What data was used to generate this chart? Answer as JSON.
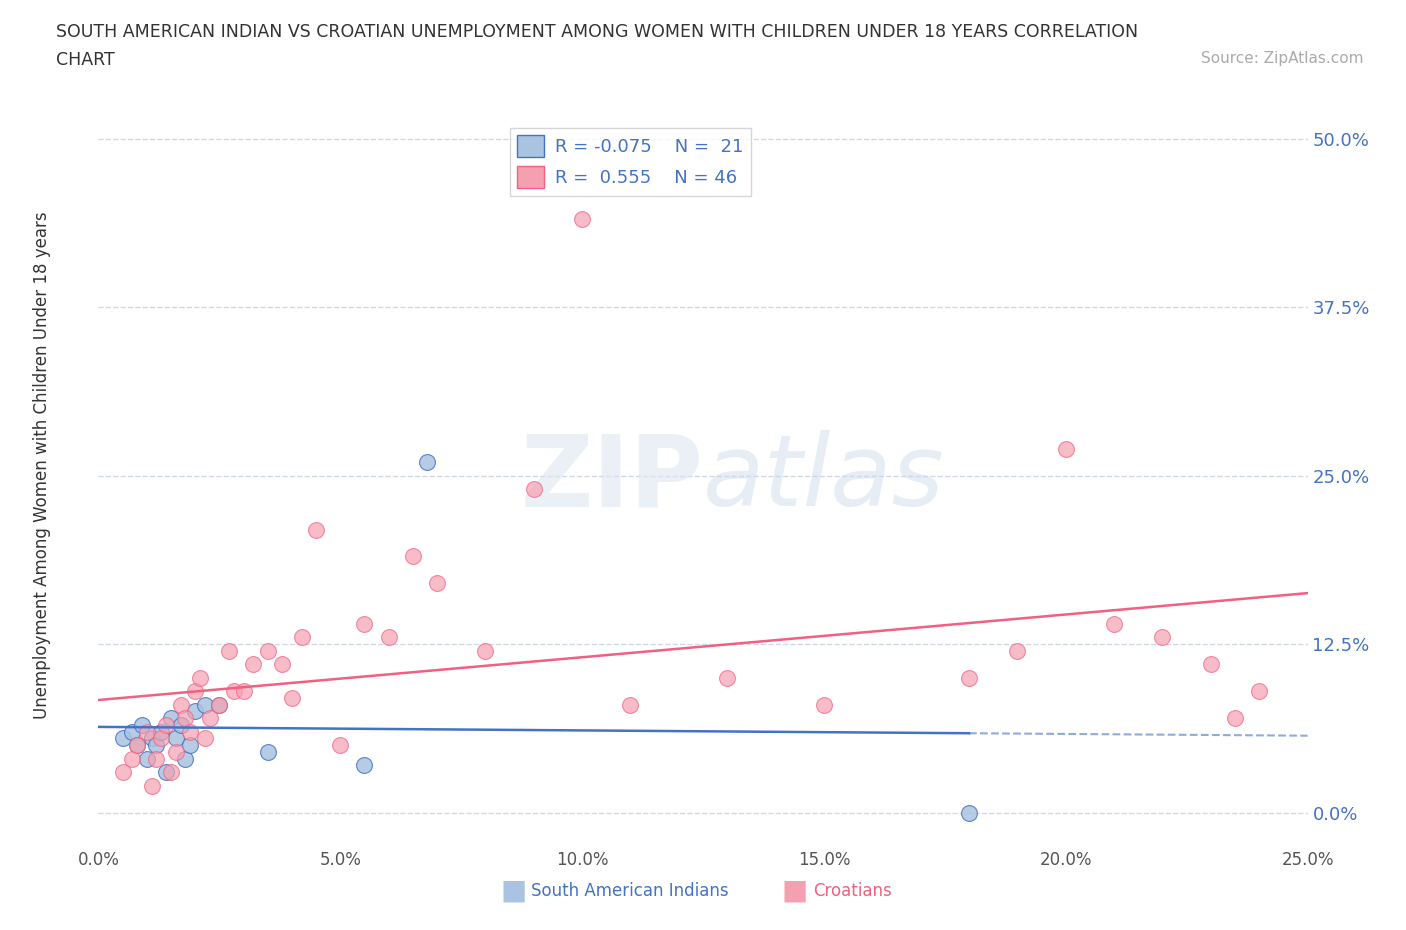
{
  "title_line1": "SOUTH AMERICAN INDIAN VS CROATIAN UNEMPLOYMENT AMONG WOMEN WITH CHILDREN UNDER 18 YEARS CORRELATION",
  "title_line2": "CHART",
  "source": "Source: ZipAtlas.com",
  "ylabel_label": "Unemployment Among Women with Children Under 18 years",
  "legend_blue_R": "R = -0.075",
  "legend_blue_N": "N =  21",
  "legend_pink_R": "R =  0.555",
  "legend_pink_N": "N = 46",
  "blue_color": "#a8c4e0",
  "pink_color": "#f4a0b0",
  "blue_line_color": "#4472c4",
  "pink_line_color": "#f06080",
  "background_color": "#ffffff",
  "grid_color": "#d0d8e8",
  "watermark_zip": "ZIP",
  "watermark_atlas": "atlas",
  "xlim": [
    0.0,
    0.25
  ],
  "ylim": [
    -0.025,
    0.52
  ],
  "blue_scatter_x": [
    0.005,
    0.007,
    0.008,
    0.009,
    0.01,
    0.011,
    0.012,
    0.013,
    0.014,
    0.015,
    0.016,
    0.017,
    0.018,
    0.019,
    0.02,
    0.022,
    0.025,
    0.035,
    0.055,
    0.068,
    0.18
  ],
  "blue_scatter_y": [
    0.055,
    0.06,
    0.05,
    0.065,
    0.04,
    0.055,
    0.05,
    0.06,
    0.03,
    0.07,
    0.055,
    0.065,
    0.04,
    0.05,
    0.075,
    0.08,
    0.08,
    0.045,
    0.035,
    0.26,
    0.0
  ],
  "pink_scatter_x": [
    0.005,
    0.007,
    0.008,
    0.01,
    0.011,
    0.012,
    0.013,
    0.014,
    0.015,
    0.016,
    0.017,
    0.018,
    0.019,
    0.02,
    0.021,
    0.022,
    0.023,
    0.025,
    0.027,
    0.028,
    0.03,
    0.032,
    0.035,
    0.038,
    0.04,
    0.042,
    0.045,
    0.05,
    0.055,
    0.06,
    0.065,
    0.07,
    0.08,
    0.09,
    0.1,
    0.11,
    0.13,
    0.15,
    0.18,
    0.19,
    0.2,
    0.21,
    0.22,
    0.23,
    0.235,
    0.24
  ],
  "pink_scatter_y": [
    0.03,
    0.04,
    0.05,
    0.06,
    0.02,
    0.04,
    0.055,
    0.065,
    0.03,
    0.045,
    0.08,
    0.07,
    0.06,
    0.09,
    0.1,
    0.055,
    0.07,
    0.08,
    0.12,
    0.09,
    0.09,
    0.11,
    0.12,
    0.11,
    0.085,
    0.13,
    0.21,
    0.05,
    0.14,
    0.13,
    0.19,
    0.17,
    0.12,
    0.24,
    0.44,
    0.08,
    0.1,
    0.08,
    0.1,
    0.12,
    0.27,
    0.14,
    0.13,
    0.11,
    0.07,
    0.09
  ]
}
